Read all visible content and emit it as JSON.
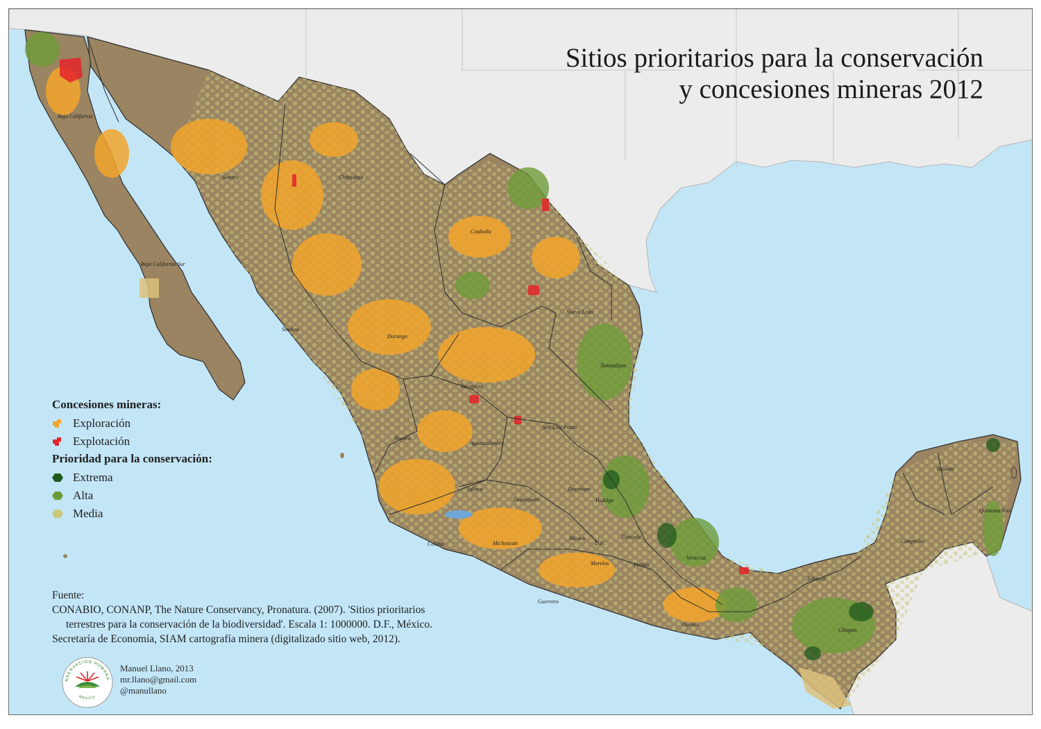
{
  "title": {
    "line1": "Sitios prioritarios para la conservación",
    "line2": "y concesiones mineras 2012"
  },
  "legend": {
    "mining_heading": "Concesiones mineras:",
    "mining_items": [
      {
        "label": "Exploración",
        "color": "#f3a52c"
      },
      {
        "label": "Explotación",
        "color": "#e4252a"
      }
    ],
    "priority_heading": "Prioridad para la conservación:",
    "priority_items": [
      {
        "label": "Extrema",
        "color": "#1d5a1c"
      },
      {
        "label": "Alta",
        "color": "#6e9c3a"
      },
      {
        "label": "Media",
        "color": "#c8c77c"
      }
    ]
  },
  "source": {
    "heading": "Fuente:",
    "line1": "CONABIO, CONANP, The Nature Conservancy, Pronatura. (2007). 'Sitios prioritarios",
    "line2": "terrestres para la conservación de la biodiversidad'. Escala 1: 1000000. D.F., México.",
    "line3": "Secretaría de Economía, SIAM cartografía minera (digitalizado sitio web, 2012)."
  },
  "author": {
    "name": "Manuel Llano, 2013",
    "email": "mr.llano@gmail.com",
    "handle": "@manullano"
  },
  "logo": {
    "top_text": "CONSERVACIÓN HUMANA AC",
    "bottom_text": "MÉXICO"
  },
  "states": {
    "baja_california": "Baja California",
    "sonora": "Sonora",
    "chihuahua": "Chihuahua",
    "coahuila": "Coahuila",
    "baja_california_sur": "Baja California Sur",
    "sinaloa": "Sinaloa",
    "durango": "Durango",
    "nuevo_leon": "Nuevo León",
    "tamaulipas": "Tamaulipas",
    "zacatecas": "Zacatecas",
    "san_luis_potosi": "San Luis Potosí",
    "nayarit": "Nayarit",
    "aguascalientes": "Aguascalientes",
    "jalisco": "Jalisco",
    "guanajuato": "Guanajuato",
    "queretaro": "Querétaro",
    "hidalgo": "Hidalgo",
    "colima": "Colima",
    "michoacan": "Michoacán",
    "mexico": "México",
    "df": "D.F.",
    "tlaxcala": "Tlaxcala",
    "morelos": "Morelos",
    "puebla": "Puebla",
    "veracruz": "Veracruz",
    "guerrero": "Guerrero",
    "oaxaca": "Oaxaca",
    "tabasco": "Tabasco",
    "chiapas": "Chiapas",
    "campeche": "Campeche",
    "yucatan": "Yucatán",
    "quintana_roo": "Quintana Roo"
  },
  "colors": {
    "sea": "#c3e6f7",
    "land_mexico": "#9a8461",
    "land_neighbors": "#ececec"
  }
}
